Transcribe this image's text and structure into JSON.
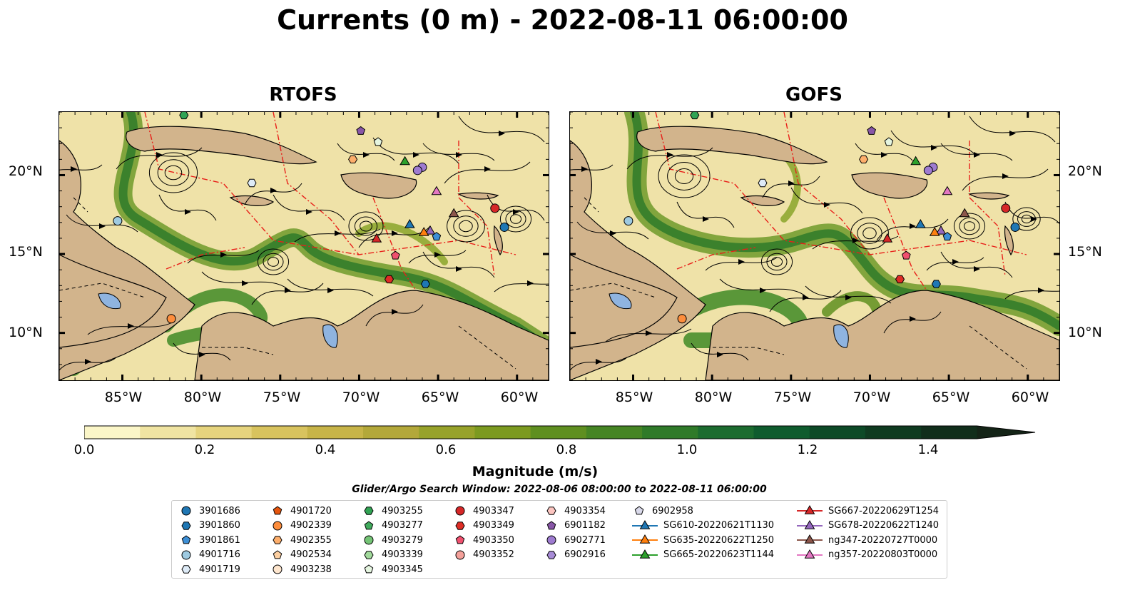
{
  "title": "Currents (0 m) - 2022-08-11 06:00:00",
  "panels": [
    {
      "title": "RTOFS"
    },
    {
      "title": "GOFS"
    }
  ],
  "lat_labels": [
    "20°N",
    "15°N",
    "10°N"
  ],
  "lon_labels": [
    "85°W",
    "80°W",
    "75°W",
    "70°W",
    "65°W",
    "60°W"
  ],
  "colorbar": {
    "label": "Magnitude (m/s)",
    "ticks": [
      "0.0",
      "0.2",
      "0.4",
      "0.6",
      "0.8",
      "1.0",
      "1.2",
      "1.4"
    ],
    "colors": [
      "#fbf6c8",
      "#f0e4a2",
      "#e6d47e",
      "#d8c35e",
      "#c7b448",
      "#b3a83a",
      "#97a22a",
      "#7c9a20",
      "#5f8f20",
      "#468524",
      "#2f7a29",
      "#1c6c2f",
      "#0f5c2e",
      "#0d4a27",
      "#0f3b20",
      "#112e1b",
      "#142417"
    ],
    "extend": "max"
  },
  "search_window": "Glider/Argo Search Window: 2022-08-06 08:00:00 to 2022-08-11 06:00:00",
  "legend": {
    "columns": [
      [
        {
          "label": "3901686",
          "marker": "circle",
          "color": "#1f77b4"
        },
        {
          "label": "3901860",
          "marker": "hexagon",
          "color": "#1f77b4"
        },
        {
          "label": "3901861",
          "marker": "pentagon",
          "color": "#3d8fd6"
        },
        {
          "label": "4901716",
          "marker": "circle",
          "color": "#9ecae1"
        },
        {
          "label": "4901719",
          "marker": "hexagon",
          "color": "#deebf7"
        }
      ],
      [
        {
          "label": "4901720",
          "marker": "pentagon",
          "color": "#e6550d"
        },
        {
          "label": "4902339",
          "marker": "circle",
          "color": "#fd8d3c"
        },
        {
          "label": "4902355",
          "marker": "hexagon",
          "color": "#fdae6b"
        },
        {
          "label": "4902534",
          "marker": "pentagon",
          "color": "#fdd0a2"
        },
        {
          "label": "4903238",
          "marker": "circle",
          "color": "#fee6ce"
        }
      ],
      [
        {
          "label": "4903255",
          "marker": "hexagon",
          "color": "#31a354"
        },
        {
          "label": "4903277",
          "marker": "pentagon",
          "color": "#41ab5d"
        },
        {
          "label": "4903279",
          "marker": "circle",
          "color": "#74c476"
        },
        {
          "label": "4903339",
          "marker": "hexagon",
          "color": "#a1d99b"
        },
        {
          "label": "4903345",
          "marker": "pentagon",
          "color": "#e5f5e0"
        }
      ],
      [
        {
          "label": "4903347",
          "marker": "circle",
          "color": "#d62728"
        },
        {
          "label": "4903349",
          "marker": "hexagon",
          "color": "#de2d26"
        },
        {
          "label": "4903350",
          "marker": "pentagon",
          "color": "#f0506e"
        },
        {
          "label": "4903352",
          "marker": "circle",
          "color": "#f4a09a"
        }
      ],
      [
        {
          "label": "4903354",
          "marker": "hexagon",
          "color": "#fcc5c0"
        },
        {
          "label": "6901182",
          "marker": "pentagon",
          "color": "#8856a7"
        },
        {
          "label": "6902771",
          "marker": "circle",
          "color": "#9e7bd0"
        },
        {
          "label": "6902916",
          "marker": "hexagon",
          "color": "#a78bd6"
        }
      ],
      [
        {
          "label": "6902958",
          "marker": "pentagon",
          "color": "#dadaeb"
        },
        {
          "label": "SG610-20220621T1130",
          "marker": "triangle",
          "color": "#1f77b4"
        },
        {
          "label": "SG635-20220622T1250",
          "marker": "triangle",
          "color": "#ff7f0e"
        },
        {
          "label": "SG665-20220623T1144",
          "marker": "triangle",
          "color": "#2ca02c"
        }
      ],
      [
        {
          "label": "SG667-20220629T1254",
          "marker": "triangle",
          "color": "#d62728"
        },
        {
          "label": "SG678-20220622T1240",
          "marker": "triangle",
          "color": "#9467bd"
        },
        {
          "label": "ng347-20220727T0000",
          "marker": "triangle",
          "color": "#8c564b"
        },
        {
          "label": "ng357-20220803T0000",
          "marker": "triangle",
          "color": "#e377c2"
        }
      ]
    ]
  },
  "map_extent": {
    "lon": [
      -89,
      -58
    ],
    "lat": [
      7,
      24
    ]
  },
  "markers": [
    {
      "lon": -85.3,
      "lat": 17.1,
      "marker": "circle",
      "color": "#9ecae1"
    },
    {
      "lon": -76.8,
      "lat": 19.5,
      "marker": "hexagon",
      "color": "#deebf7"
    },
    {
      "lon": -81.9,
      "lat": 10.9,
      "marker": "circle",
      "color": "#fd8d3c"
    },
    {
      "lon": -70.4,
      "lat": 21.0,
      "marker": "hexagon",
      "color": "#fdae6b"
    },
    {
      "lon": -69.9,
      "lat": 22.8,
      "marker": "pentagon",
      "color": "#8856a7"
    },
    {
      "lon": -68.8,
      "lat": 22.1,
      "marker": "pentagon",
      "color": "#e5f5e0"
    },
    {
      "lon": -67.1,
      "lat": 20.9,
      "marker": "triangle",
      "color": "#2ca02c"
    },
    {
      "lon": -66.0,
      "lat": 20.5,
      "marker": "circle",
      "color": "#9e7bd0"
    },
    {
      "lon": -66.3,
      "lat": 20.3,
      "marker": "circle",
      "color": "#9e7bd0"
    },
    {
      "lon": -65.1,
      "lat": 19.0,
      "marker": "triangle",
      "color": "#e377c2"
    },
    {
      "lon": -64.0,
      "lat": 17.6,
      "marker": "triangle",
      "color": "#8c564b"
    },
    {
      "lon": -61.4,
      "lat": 17.9,
      "marker": "circle",
      "color": "#d62728"
    },
    {
      "lon": -60.8,
      "lat": 16.7,
      "marker": "circle",
      "color": "#1f77b4"
    },
    {
      "lon": -66.8,
      "lat": 16.9,
      "marker": "triangle",
      "color": "#1f77b4"
    },
    {
      "lon": -65.5,
      "lat": 16.5,
      "marker": "triangle",
      "color": "#9467bd"
    },
    {
      "lon": -65.9,
      "lat": 16.4,
      "marker": "triangle",
      "color": "#ff7f0e"
    },
    {
      "lon": -65.1,
      "lat": 16.1,
      "marker": "pentagon",
      "color": "#3d8fd6"
    },
    {
      "lon": -68.9,
      "lat": 16.0,
      "marker": "triangle",
      "color": "#d62728"
    },
    {
      "lon": -67.7,
      "lat": 14.9,
      "marker": "pentagon",
      "color": "#f0506e"
    },
    {
      "lon": -68.1,
      "lat": 13.4,
      "marker": "hexagon",
      "color": "#de2d26"
    },
    {
      "lon": -65.8,
      "lat": 13.1,
      "marker": "hexagon",
      "color": "#1f77b4"
    },
    {
      "lon": -81.1,
      "lat": 23.8,
      "marker": "hexagon",
      "color": "#31a354"
    }
  ]
}
